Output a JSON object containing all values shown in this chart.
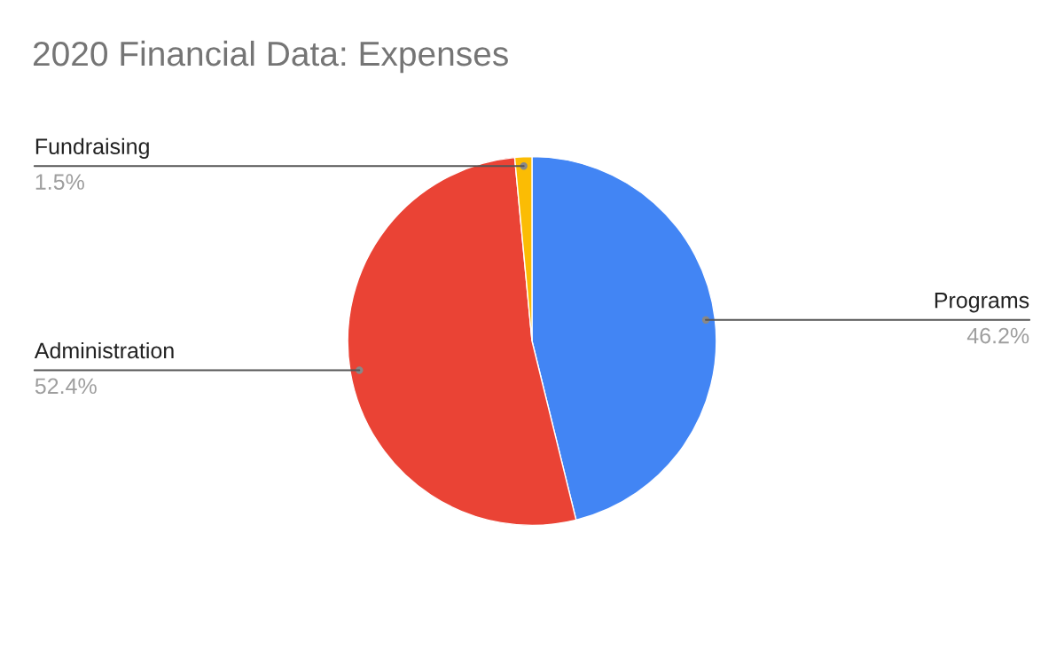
{
  "chart_data": {
    "type": "pie",
    "title": "2020 Financial Data: Expenses",
    "categories": [
      "Programs",
      "Administration",
      "Fundraising"
    ],
    "values": [
      46.2,
      52.4,
      1.5
    ],
    "value_labels": [
      "46.2%",
      "52.4%",
      "1.5%"
    ],
    "colors": [
      "#4285f4",
      "#ea4335",
      "#fbbc04"
    ],
    "legend": false
  }
}
